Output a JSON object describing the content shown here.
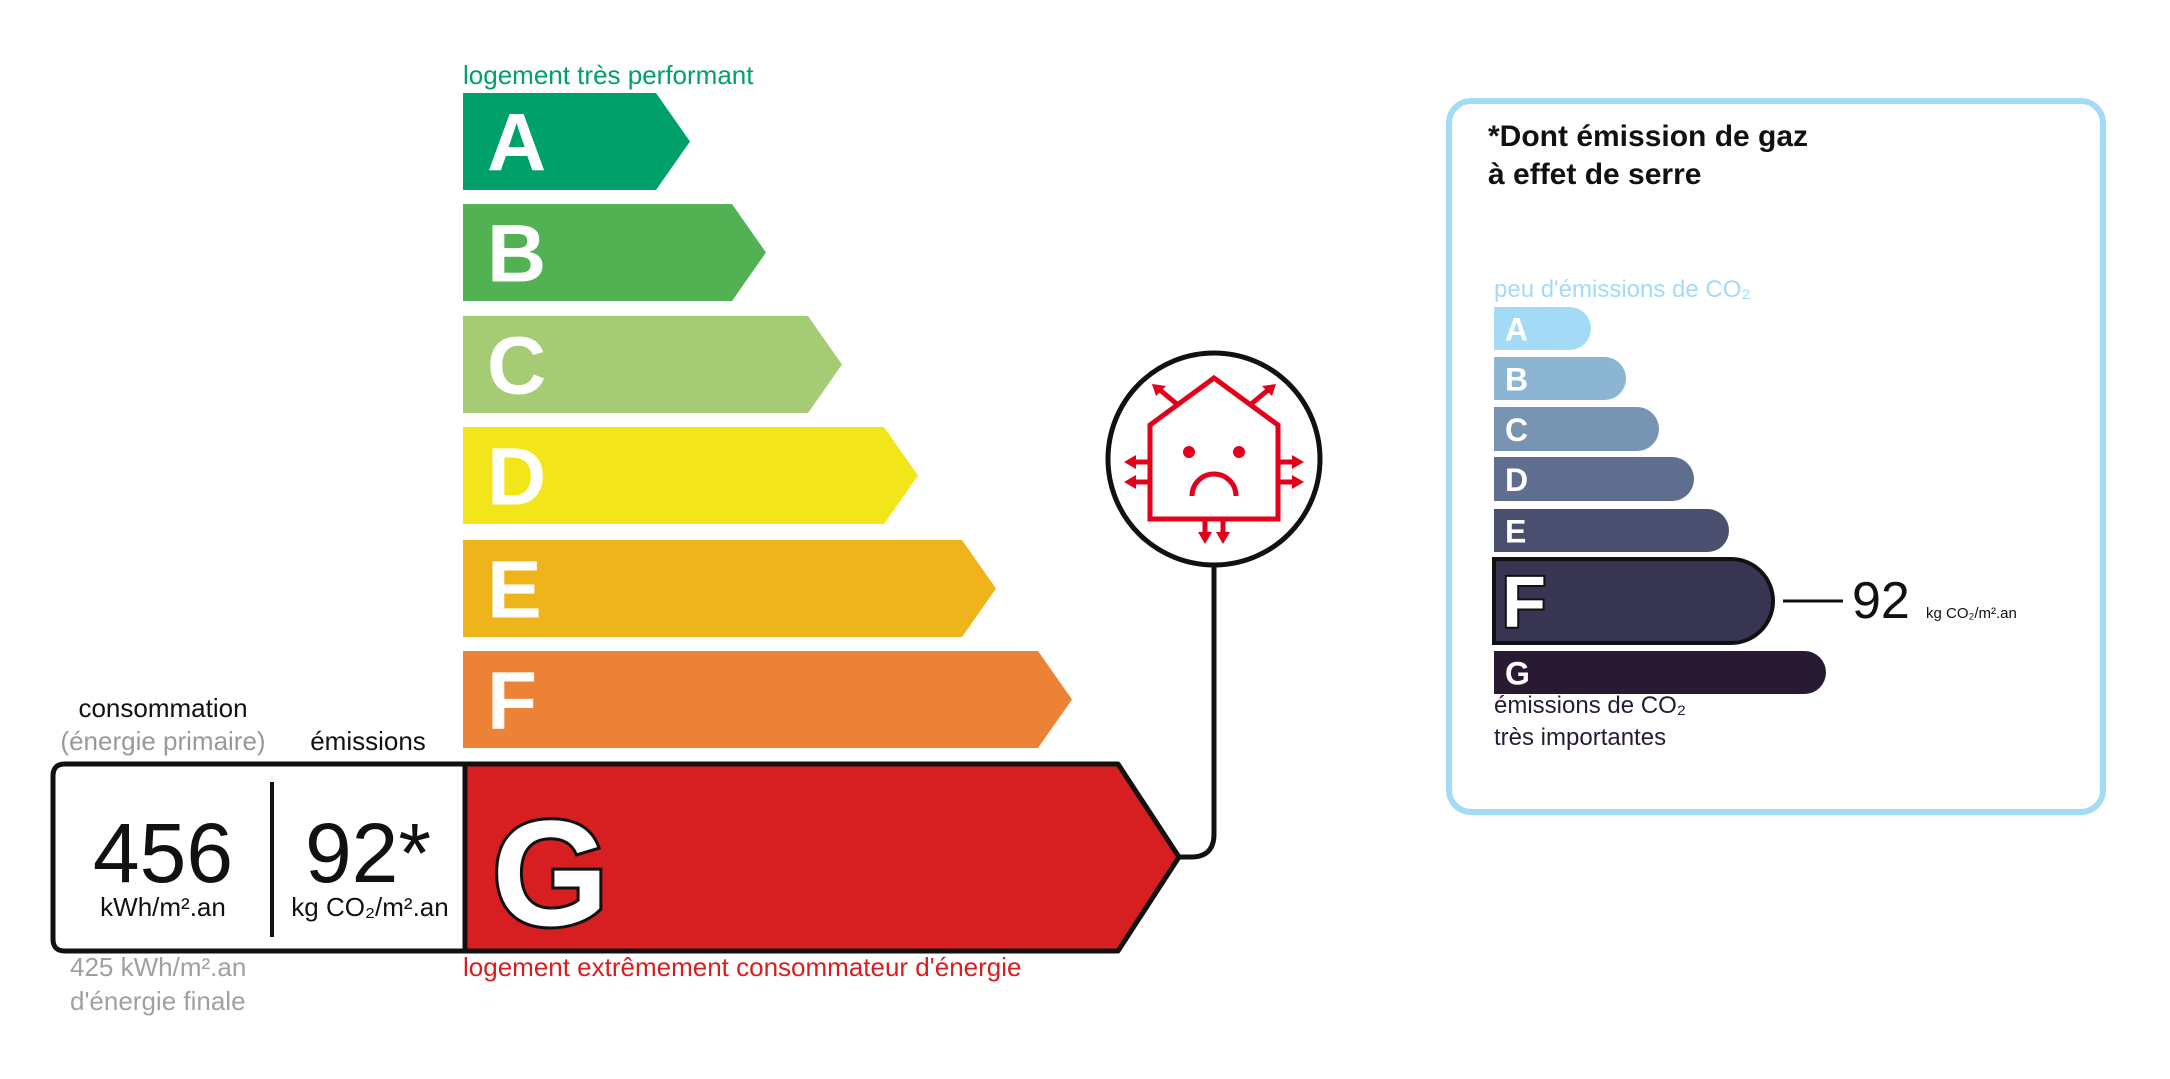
{
  "energy_scale": {
    "top_label": "logement très performant",
    "bottom_label": "logement extrêmement consommateur d'énergie",
    "current": "G",
    "classes": [
      {
        "letter": "A",
        "color": "#00a06b"
      },
      {
        "letter": "B",
        "color": "#52b153"
      },
      {
        "letter": "C",
        "color": "#a5cc74"
      },
      {
        "letter": "D",
        "color": "#f2e61a"
      },
      {
        "letter": "E",
        "color": "#efb41c"
      },
      {
        "letter": "F",
        "color": "#eb8235"
      },
      {
        "letter": "G",
        "color": "#d71e20"
      }
    ]
  },
  "consumption": {
    "label": "consommation",
    "sublabel": "(énergie primaire)",
    "value": "456",
    "unit": "kWh/m².an",
    "final_value": "425 kWh/m².an",
    "final_label": "d'énergie finale"
  },
  "emissions": {
    "label": "émissions",
    "value": "92*",
    "unit": "kg CO₂/m².an"
  },
  "status_icon": "house-heat-loss-sad-icon",
  "ghg_scale": {
    "title_line1": "*Dont émission de gaz",
    "title_line2": "à effet de serre",
    "top_label": "peu d'émissions de CO₂",
    "bottom_label_line1": "émissions de CO₂",
    "bottom_label_line2": "très importantes",
    "current": "F",
    "value": "92",
    "unit": "kg CO₂/m².an",
    "border_color": "#a3dbf6",
    "classes": [
      {
        "letter": "A",
        "color": "#a3dbf6"
      },
      {
        "letter": "B",
        "color": "#8cb4d3"
      },
      {
        "letter": "C",
        "color": "#7794b2"
      },
      {
        "letter": "D",
        "color": "#5f6e8e"
      },
      {
        "letter": "E",
        "color": "#4b4f6f"
      },
      {
        "letter": "F",
        "color": "#383553"
      },
      {
        "letter": "G",
        "color": "#281a33"
      }
    ]
  }
}
